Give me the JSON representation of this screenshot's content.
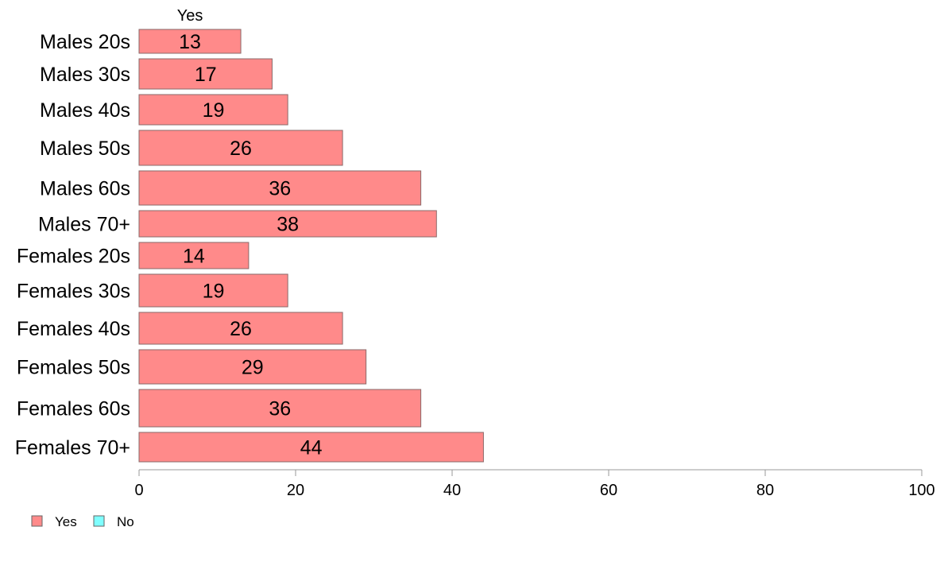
{
  "chart_data": {
    "type": "bar",
    "orientation": "horizontal",
    "stacked": true,
    "categories": [
      "Males 20s",
      "Males 30s",
      "Males 40s",
      "Males 50s",
      "Males 60s",
      "Males 70+",
      "Females 20s",
      "Females 30s",
      "Females 40s",
      "Females 50s",
      "Females 60s",
      "Females 70+"
    ],
    "series": [
      {
        "name": "Yes",
        "color": "#FF8A8A",
        "values": [
          13,
          17,
          19,
          26,
          36,
          38,
          14,
          19,
          26,
          29,
          36,
          44
        ]
      },
      {
        "name": "No",
        "color": "#7FFFFF",
        "values": [
          null,
          null,
          null,
          null,
          null,
          null,
          null,
          null,
          null,
          null,
          null,
          null
        ]
      }
    ],
    "series_header": "Yes",
    "xlim": [
      0,
      100
    ],
    "xticks": [
      0,
      20,
      40,
      60,
      80,
      100
    ],
    "grid": false,
    "legend": {
      "position": "bottom-left",
      "entries": [
        "Yes",
        "No"
      ]
    }
  }
}
